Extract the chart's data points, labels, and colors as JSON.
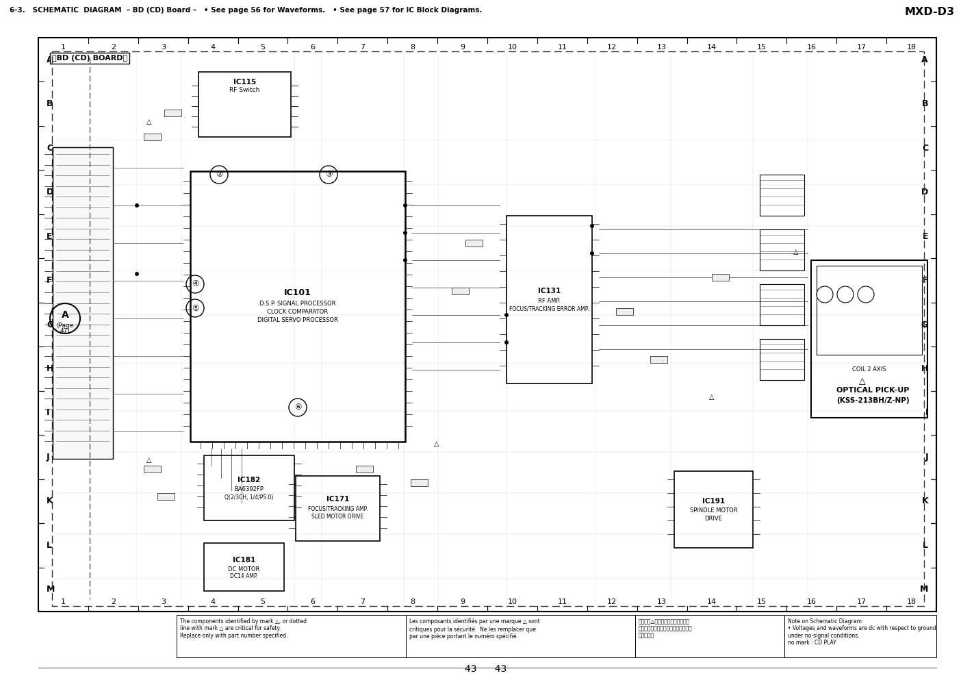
{
  "title_left": "6-3.   SCHEMATIC  DIAGRAM  – BD (CD) Board –   • See page 56 for Waveforms.   • See page 57 for IC Block Diagrams.",
  "title_right": "MXD-D3",
  "bg_color": "#ffffff",
  "col_labels": [
    "1",
    "2",
    "3",
    "4",
    "5",
    "6",
    "7",
    "8",
    "9",
    "10",
    "11",
    "12",
    "13",
    "14",
    "15",
    "16",
    "17",
    "18"
  ],
  "row_labels": [
    "A",
    "B",
    "C",
    "D",
    "E",
    "F",
    "G",
    "H",
    "I",
    "J",
    "K",
    "L",
    "M"
  ],
  "board_label": "》BD (CD) BOARD《",
  "page_numbers": "43      43",
  "footnotes": [
    "The components identified by mark △, or dotted\nline with mark △ are critical for safety.\nReplace only with part number specified.",
    "Les composants identifiés par une marque △ sont\ncritiques pour la sécurité.  Ne les remplacer que\npar une pièce portant le numéro spécifié.",
    "以同图和△标志来识别的零部在安全\n方面具有关键性。因此只能用指定的零\n件来更换。",
    "Note on Schematic Diagram:\n• Voltages and waveforms are dc with respect to ground\nunder no-signal conditions.\nno mark : CD PLAY"
  ]
}
